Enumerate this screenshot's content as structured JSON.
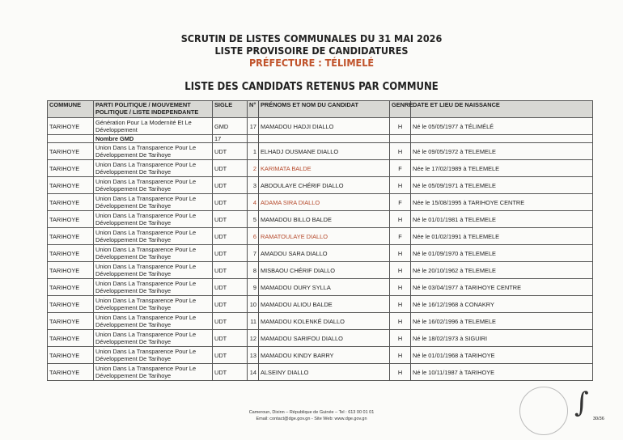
{
  "header": {
    "line1": "SCRUTIN DE LISTES COMMUNALES DU 31 MAI 2026",
    "line2": "LISTE PROVISOIRE DE CANDIDATURES",
    "line3": "PRÉFECTURE : TÉLIMELÉ",
    "subtitle": "LISTE DES CANDIDATS RETENUS PAR COMMUNE"
  },
  "table": {
    "columns": [
      "COMMUNE",
      "PARTI POLITIQUE / MOUVEMENT POLITIQUE / LISTE INDEPENDANTE",
      "SIGLE",
      "N°",
      "PRÉNOMS ET NOM DU CANDIDAT",
      "GENRE",
      "DATE ET LIEU DE NAISSANCE"
    ],
    "gmd_row": {
      "commune": "TARIHOYE",
      "parti": "Génération Pour La Modernité Et Le Développement",
      "sigle": "GMD",
      "n": "17",
      "nom": "MAMADOU HADJI DIALLO",
      "genre": "H",
      "naissance": "Né le 05/05/1977 à TÉLIMÉLÉ"
    },
    "count_row": {
      "label": "Nombre GMD",
      "value": "17"
    },
    "udt_parti": "Union Dans La Transparence Pour Le Développement De Tarihoye",
    "rows": [
      {
        "commune": "TARIHOYE",
        "sigle": "UDT",
        "n": "1",
        "nom": "ELHADJ OUSMANE DIALLO",
        "genre": "H",
        "naissance": "Né le 09/05/1972 à TELEMELE"
      },
      {
        "commune": "TARIHOYE",
        "sigle": "UDT",
        "n": "2",
        "nom": "KARIMATA BALDE",
        "genre": "F",
        "naissance": "Née le 17/02/1989 à TELEMELE"
      },
      {
        "commune": "TARIHOYE",
        "sigle": "UDT",
        "n": "3",
        "nom": "ABDOULAYE CHÉRIF DIALLO",
        "genre": "H",
        "naissance": "Né le 05/09/1971 à TELEMELE"
      },
      {
        "commune": "TARIHOYE",
        "sigle": "UDT",
        "n": "4",
        "nom": "ADAMA SIRA DIALLO",
        "genre": "F",
        "naissance": "Née le 15/08/1995 à TARIHOYE CENTRE"
      },
      {
        "commune": "TARIHOYE",
        "sigle": "UDT",
        "n": "5",
        "nom": "MAMADOU BILLO BALDE",
        "genre": "H",
        "naissance": "Né le 01/01/1981 à TELEMELE"
      },
      {
        "commune": "TARIHOYE",
        "sigle": "UDT",
        "n": "6",
        "nom": "RAMATOULAYE DIALLO",
        "genre": "F",
        "naissance": "Née le 01/02/1991 à TELEMELE"
      },
      {
        "commune": "TARIHOYE",
        "sigle": "UDT",
        "n": "7",
        "nom": "AMADOU SARA DIALLO",
        "genre": "H",
        "naissance": "Né le 01/09/1970 à TELEMELE"
      },
      {
        "commune": "TARIHOYE",
        "sigle": "UDT",
        "n": "8",
        "nom": "MISBAOU CHÉRIF DIALLO",
        "genre": "H",
        "naissance": "Né le 20/10/1962 à TELEMELE"
      },
      {
        "commune": "TARIHOYE",
        "sigle": "UDT",
        "n": "9",
        "nom": "MAMADOU OURY SYLLA",
        "genre": "H",
        "naissance": "Né le 03/04/1977 à TARIHOYE CENTRE"
      },
      {
        "commune": "TARIHOYE",
        "sigle": "UDT",
        "n": "10",
        "nom": "MAMADOU ALIOU BALDE",
        "genre": "H",
        "naissance": "Né le 16/12/1968 à CONAKRY"
      },
      {
        "commune": "TARIHOYE",
        "sigle": "UDT",
        "n": "11",
        "nom": "MAMADOU KOLENKÉ DIALLO",
        "genre": "H",
        "naissance": "Né le 16/02/1996 à TELEMELE"
      },
      {
        "commune": "TARIHOYE",
        "sigle": "UDT",
        "n": "12",
        "nom": "MAMADOU SARIFOU DIALLO",
        "genre": "H",
        "naissance": "Né le 18/02/1973 à SIGUIRI"
      },
      {
        "commune": "TARIHOYE",
        "sigle": "UDT",
        "n": "13",
        "nom": "MAMADOU KINDY BARRY",
        "genre": "H",
        "naissance": "Né le 01/01/1968 à TARIHOYE"
      },
      {
        "commune": "TARIHOYE",
        "sigle": "UDT",
        "n": "14",
        "nom": "ALSEINY DIALLO",
        "genre": "H",
        "naissance": "Né le 10/11/1987 à TARIHOYE"
      }
    ]
  },
  "footer": {
    "line1": "Cameroun, Dixinn – République de Guinée – Tel : 613 00 01 01",
    "line2": "Email: contact@dge.gov.gn  - Site Web: www.dge.gov.gn",
    "page": "30/36"
  },
  "colors": {
    "female_name": "#b5482a",
    "prefecture": "#c0522a",
    "header_bg": "#d8d8d4"
  }
}
